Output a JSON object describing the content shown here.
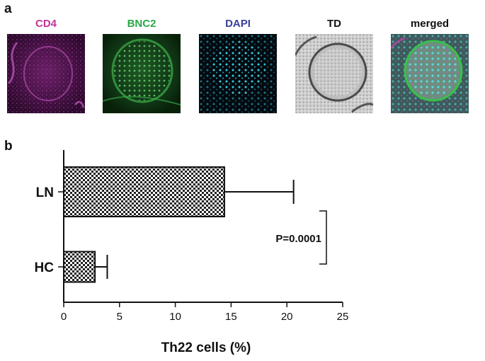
{
  "panel_a": {
    "letter": "a",
    "images": [
      {
        "label": "CD4",
        "color": "#c0359a"
      },
      {
        "label": "BNC2",
        "color": "#2aa84a"
      },
      {
        "label": "DAPI",
        "color": "#3a3f9a"
      },
      {
        "label": "TD",
        "color": "#111111"
      },
      {
        "label": "merged",
        "color": "#111111"
      }
    ]
  },
  "panel_b": {
    "letter": "b"
  },
  "chart_data": {
    "type": "bar",
    "orientation": "horizontal",
    "categories": [
      "LN",
      "HC"
    ],
    "values": [
      14.4,
      2.8
    ],
    "error_plus": [
      6.2,
      1.1
    ],
    "xlabel": "Th22 cells (%)",
    "ylabel": "",
    "xlim": [
      0,
      25
    ],
    "xticks": [
      "0",
      "5",
      "10",
      "15",
      "20",
      "25"
    ],
    "annotation": "P=0.0001",
    "bar_pattern": "checkerboard",
    "grid": false
  }
}
